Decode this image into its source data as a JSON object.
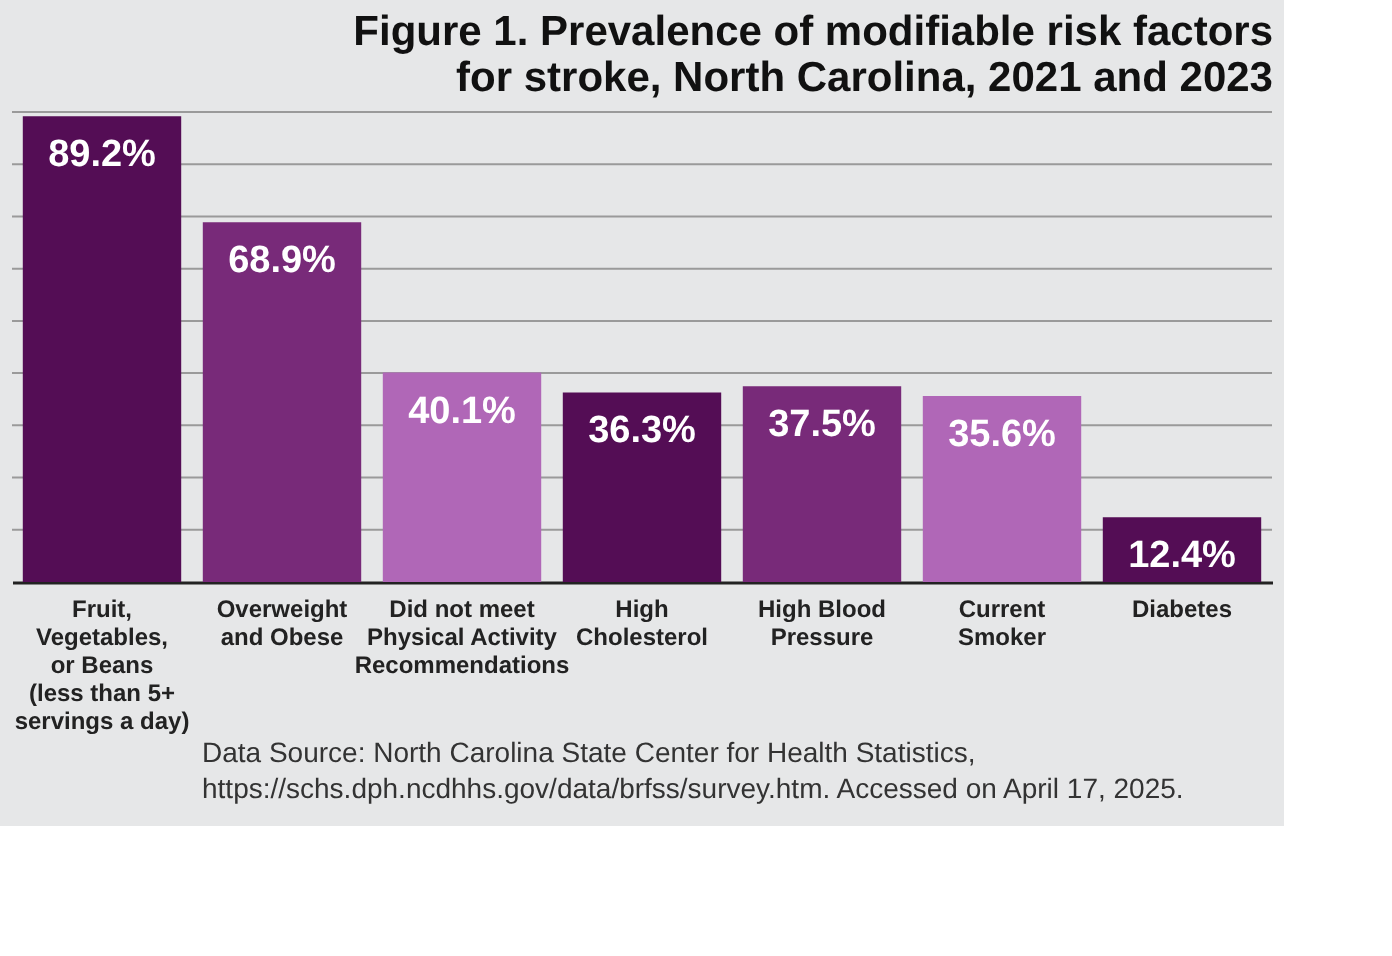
{
  "chart_data": {
    "type": "bar",
    "title": "Figure 1. Prevalence of modifiable risk factors\nfor stroke, North Carolina, 2021 and 2023",
    "categories": [
      "Fruit,\nVegetables,\nor Beans\n(less than 5+\nservings a day)",
      "Overweight\nand Obese",
      "Did not meet\nPhysical Activity\nRecommendations",
      "High\nCholesterol",
      "High Blood\nPressure",
      "Current\nSmoker",
      "Diabetes"
    ],
    "values": [
      89.2,
      68.9,
      40.1,
      36.3,
      37.5,
      35.6,
      12.4
    ],
    "colors": [
      "#540d55",
      "#782a79",
      "#b067b7",
      "#540d55",
      "#782a79",
      "#b067b7",
      "#540d55"
    ],
    "value_labels": [
      "89.2%",
      "68.9%",
      "40.1%",
      "36.3%",
      "37.5%",
      "35.6%",
      "12.4%"
    ],
    "ylim": [
      0,
      90
    ],
    "yticks": [
      {
        "value": 10,
        "label": null
      },
      {
        "value": 20,
        "label": null
      },
      {
        "value": 30,
        "label": null
      },
      {
        "value": 40,
        "label": null
      },
      {
        "value": 50,
        "label": null
      },
      {
        "value": 60,
        "label": null
      },
      {
        "value": 70,
        "label": null
      },
      {
        "value": 80,
        "label": null
      },
      {
        "value": 90,
        "label": null
      }
    ],
    "grid": "y",
    "tick_labels": "x",
    "annotations": [
      "Data Source: North Carolina State Center for Health Statistics,\nhttps://schs.dph.ncdhhs.gov/data/brfss/survey.htm. Accessed on April 17, 2025."
    ]
  }
}
